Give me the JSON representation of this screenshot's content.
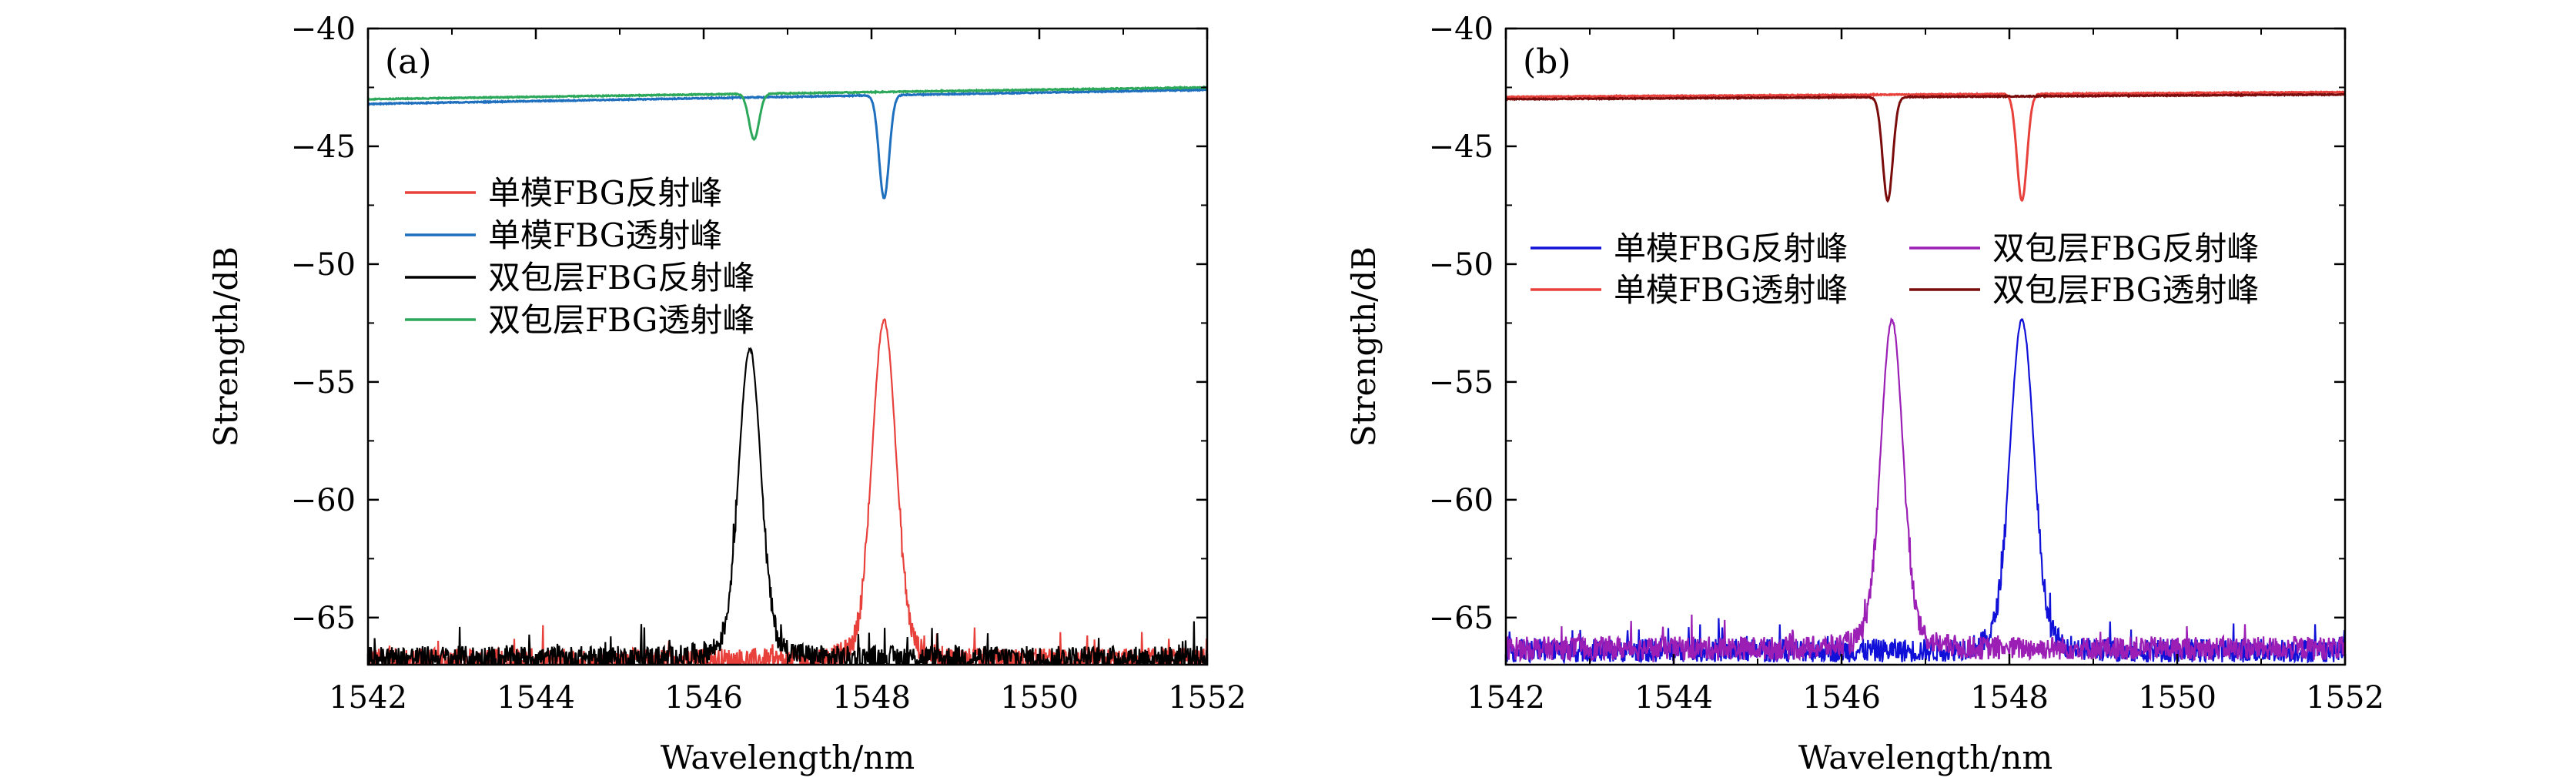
{
  "chart_data": [
    {
      "type": "line",
      "panel_label": "(a)",
      "xlabel": "Wavelength/nm",
      "ylabel": "Strength/dB",
      "xlim": [
        1542,
        1552
      ],
      "ylim": [
        -67,
        -40
      ],
      "xticks": [
        1542,
        1544,
        1546,
        1548,
        1550,
        1552
      ],
      "yticks": [
        -40,
        -45,
        -50,
        -55,
        -60,
        -65
      ],
      "xtick_labels": [
        "1542",
        "1544",
        "1546",
        "1548",
        "1550",
        "1552"
      ],
      "ytick_labels": [
        "−40",
        "−45",
        "−50",
        "−55",
        "−60",
        "−65"
      ],
      "legend_position": "center-left",
      "legend_columns": 1,
      "series": [
        {
          "name": "单模FBG反射峰",
          "kind": "reflection",
          "color": "#e8413c",
          "noise_floor": -66.8,
          "peak_center": 1548.15,
          "peak_value": -53.1,
          "peak_sigma": 0.14
        },
        {
          "name": "单模FBG透射峰",
          "kind": "transmission",
          "color": "#1f6fbf",
          "start": -43.2,
          "end": -42.6,
          "dip_center": 1548.15,
          "dip_value": -47.2,
          "dip_sigma": 0.06
        },
        {
          "name": "双包层FBG反射峰",
          "kind": "reflection",
          "color": "#000000",
          "noise_floor": -66.7,
          "peak_center": 1546.55,
          "peak_value": -54.3,
          "peak_sigma": 0.13
        },
        {
          "name": "双包层FBG透射峰",
          "kind": "transmission",
          "color": "#2ca85a",
          "start": -43.0,
          "end": -42.5,
          "dip_center": 1546.6,
          "dip_value": -44.7,
          "dip_sigma": 0.06
        }
      ]
    },
    {
      "type": "line",
      "panel_label": "(b)",
      "xlabel": "Wavelength/nm",
      "ylabel": "Strength/dB",
      "xlim": [
        1542,
        1552
      ],
      "ylim": [
        -67,
        -40
      ],
      "xticks": [
        1542,
        1544,
        1546,
        1548,
        1550,
        1552
      ],
      "yticks": [
        -40,
        -45,
        -50,
        -55,
        -60,
        -65
      ],
      "xtick_labels": [
        "1542",
        "1544",
        "1546",
        "1548",
        "1550",
        "1552"
      ],
      "ytick_labels": [
        "−40",
        "−45",
        "−50",
        "−55",
        "−60",
        "−65"
      ],
      "legend_position": "upper-center",
      "legend_columns": 2,
      "series": [
        {
          "name": "单模FBG反射峰",
          "kind": "reflection",
          "color": "#1010d8",
          "noise_floor": -66.4,
          "peak_center": 1548.15,
          "peak_value": -53.1,
          "peak_sigma": 0.14
        },
        {
          "name": "单模FBG透射峰",
          "kind": "transmission",
          "color": "#e8413c",
          "start": -42.9,
          "end": -42.7,
          "dip_center": 1548.15,
          "dip_value": -47.3,
          "dip_sigma": 0.06
        },
        {
          "name": "双包层FBG反射峰",
          "kind": "reflection",
          "color": "#9b1fb5",
          "noise_floor": -66.3,
          "peak_center": 1546.6,
          "peak_value": -53.1,
          "peak_sigma": 0.13
        },
        {
          "name": "双包层FBG透射峰",
          "kind": "transmission",
          "color": "#7a0c0c",
          "start": -43.0,
          "end": -42.8,
          "dip_center": 1546.55,
          "dip_value": -47.3,
          "dip_sigma": 0.06
        }
      ]
    }
  ]
}
